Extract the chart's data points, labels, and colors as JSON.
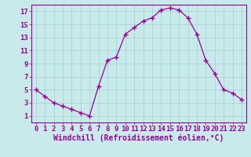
{
  "x": [
    0,
    1,
    2,
    3,
    4,
    5,
    6,
    7,
    8,
    9,
    10,
    11,
    12,
    13,
    14,
    15,
    16,
    17,
    18,
    19,
    20,
    21,
    22,
    23
  ],
  "y": [
    5,
    4,
    3,
    2.5,
    2,
    1.5,
    1,
    5.5,
    9.5,
    10,
    13.5,
    14.5,
    15.5,
    16,
    17.2,
    17.5,
    17.2,
    16,
    13.5,
    9.5,
    7.5,
    5,
    4.5,
    3.5
  ],
  "line_color": "#990099",
  "marker_color": "#990099",
  "background_color": "#c8eaea",
  "grid_color": "#a0d0d0",
  "xlabel": "Windchill (Refroidissement éolien,°C)",
  "xlabel_color": "#990099",
  "xtick_labels": [
    "0",
    "1",
    "2",
    "3",
    "4",
    "5",
    "6",
    "7",
    "8",
    "9",
    "10",
    "11",
    "12",
    "13",
    "14",
    "15",
    "16",
    "17",
    "18",
    "19",
    "20",
    "21",
    "22",
    "23"
  ],
  "ytick_vals": [
    1,
    3,
    5,
    7,
    9,
    11,
    13,
    15,
    17
  ],
  "ytick_labels": [
    "1",
    "3",
    "5",
    "7",
    "9",
    "11",
    "13",
    "15",
    "17"
  ],
  "ylim": [
    0,
    18
  ],
  "xlim": [
    -0.5,
    23.5
  ],
  "tick_color": "#990099",
  "font_size": 6.5
}
